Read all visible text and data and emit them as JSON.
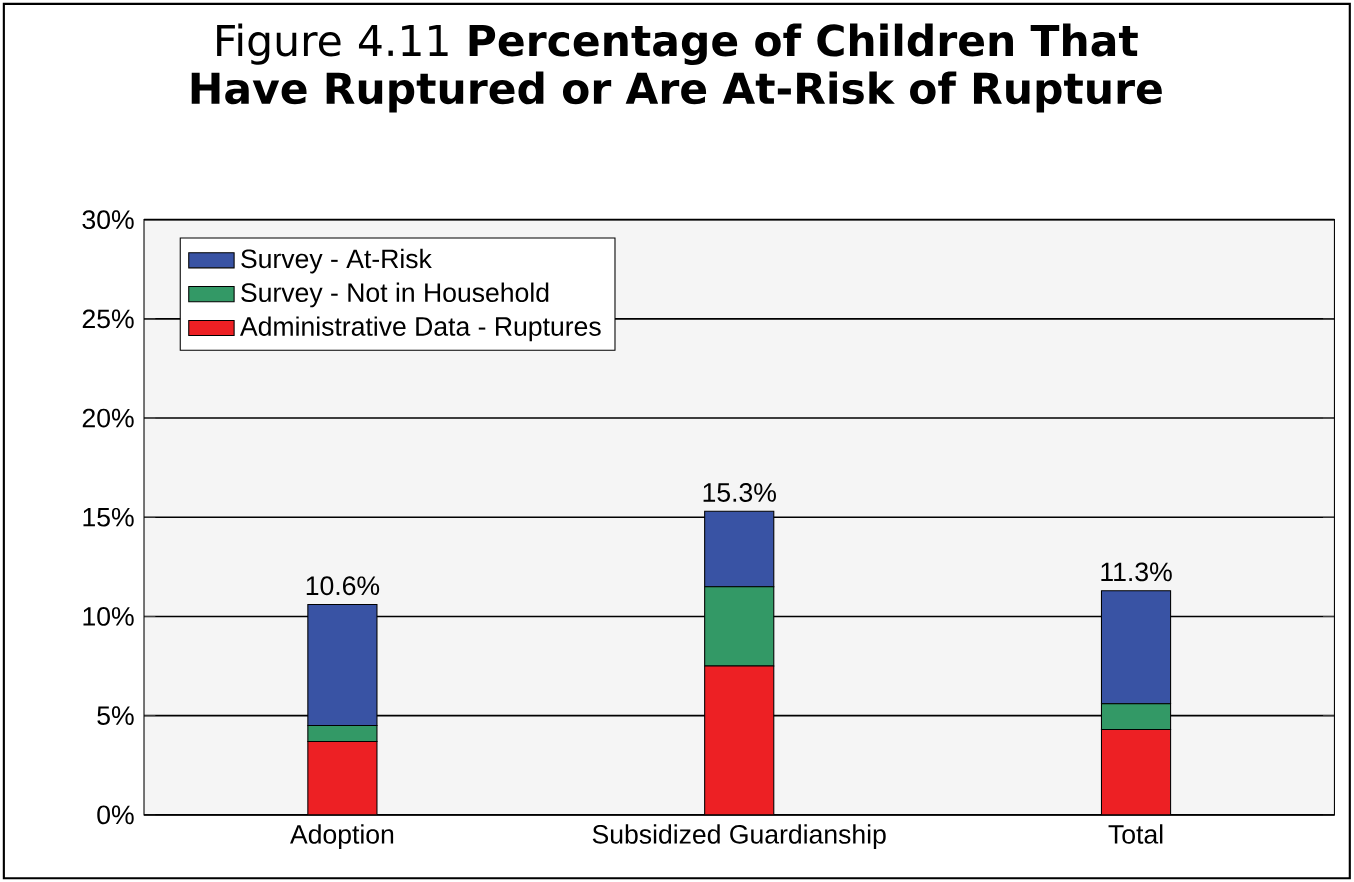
{
  "chart_data": {
    "type": "bar",
    "stacked": true,
    "title": "Figure 4.11 **Percentage of Children That Have Ruptured or Are At-Risk of Rupture**",
    "categories": [
      "Adoption",
      "Subsidized Guardianship",
      "Total"
    ],
    "series": [
      {
        "name": "Administrative Data - Ruptures",
        "color": "#ed2024",
        "values": [
          3.7,
          7.5,
          4.3
        ]
      },
      {
        "name": "Survey - Not in Household",
        "color": "#339966",
        "values": [
          0.8,
          4.0,
          1.3
        ]
      },
      {
        "name": "Survey - At-Risk",
        "color": "#3953a4",
        "values": [
          6.1,
          3.8,
          5.7
        ]
      }
    ],
    "totals": [
      "10.6%",
      "15.3%",
      "11.3%"
    ],
    "ylim": [
      0,
      30
    ],
    "yticks": [
      {
        "value": 0,
        "label": "0%"
      },
      {
        "value": 5,
        "label": "5%"
      },
      {
        "value": 10,
        "label": "10%"
      },
      {
        "value": 15,
        "label": "15%"
      },
      {
        "value": 20,
        "label": "20%"
      },
      {
        "value": 25,
        "label": "25%"
      },
      {
        "value": 30,
        "label": "30%"
      }
    ],
    "grid": "y",
    "legend": "top left"
  }
}
